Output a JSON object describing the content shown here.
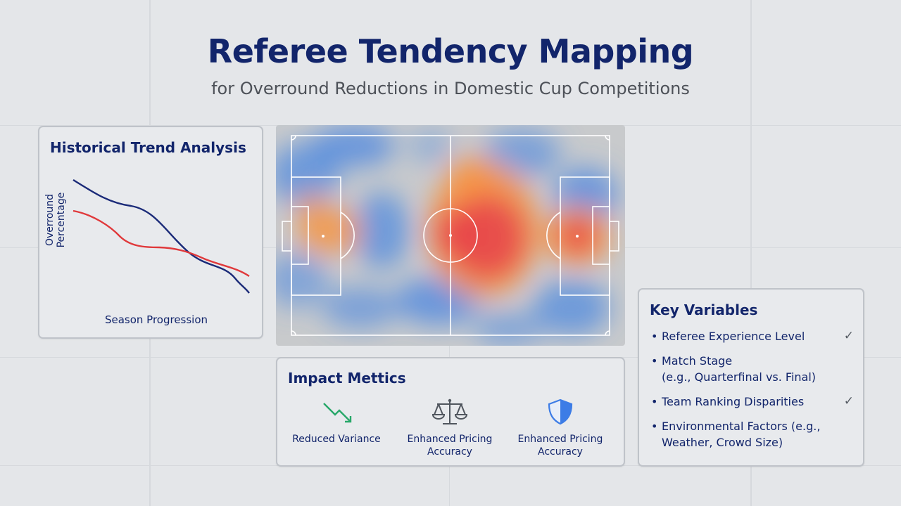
{
  "header": {
    "title": "Referee Tendency Mapping",
    "subtitle": "for Overround Reductions in Domestic Cup Competitions"
  },
  "trend_card": {
    "title": "Historical Trend Analysis",
    "y_label": "Overround Percentage",
    "x_label": "Season Progression",
    "colors": {
      "navy": "#1a2a78",
      "red": "#e0393b"
    }
  },
  "heatmap": {
    "colors": {
      "hot": "#e8424a",
      "warm": "#f59648",
      "cold": "#4a86e0",
      "pitch": "#c8cacc"
    }
  },
  "impact_card": {
    "title": "Impact Mettics",
    "metrics": [
      {
        "icon": "trend-down-icon",
        "label_1": "Reduced Variance",
        "label_2": "",
        "color": "#28a86a"
      },
      {
        "icon": "scales-icon",
        "label_1": "Enhanced Pricing",
        "label_2": "Accuracy",
        "color": "#50565e"
      },
      {
        "icon": "shield-icon",
        "label_1": "Enhanced Pricing",
        "label_2": "Accuracy",
        "color": "#3c7ce6"
      }
    ]
  },
  "key_variables": {
    "title": "Key Variables",
    "items": [
      {
        "line_1": "Referee Experience Level",
        "line_2": "",
        "checked": true
      },
      {
        "line_1": "Match Stage",
        "line_2": "(e.g., Quarterfinal vs. Final)",
        "checked": false
      },
      {
        "line_1": "Team Ranking Disparities",
        "line_2": "",
        "checked": true
      },
      {
        "line_1": "Environmental Factors (e.g.,",
        "line_2": "Weather, Crowd Size)",
        "checked": false
      }
    ],
    "bullet": "•",
    "check": "✓"
  }
}
